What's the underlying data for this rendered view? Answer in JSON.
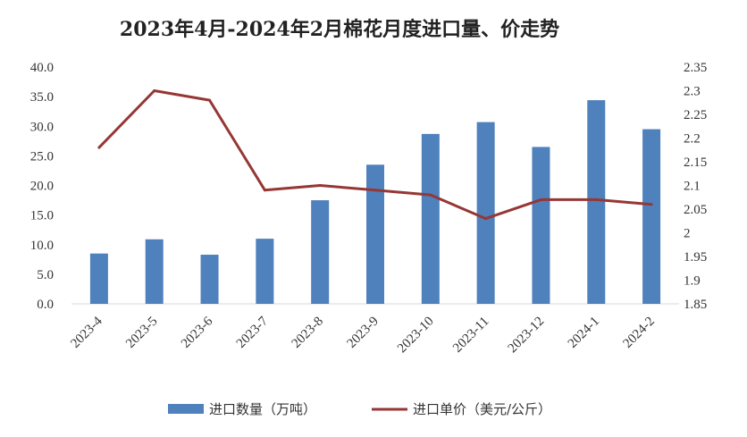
{
  "chart_data": {
    "type": "bar+line",
    "title": "2023年4月-2024年2月棉花月度进口量、价走势",
    "categories": [
      "2023-4",
      "2023-5",
      "2023-6",
      "2023-7",
      "2023-8",
      "2023-9",
      "2023-10",
      "2023-11",
      "2023-12",
      "2024-1",
      "2024-2"
    ],
    "series": [
      {
        "name": "进口数量（万吨）",
        "type": "bar",
        "axis": "left",
        "color": "#4f81bd",
        "values": [
          8.5,
          10.9,
          8.3,
          11.0,
          17.5,
          23.5,
          28.7,
          30.7,
          26.5,
          34.4,
          29.5
        ]
      },
      {
        "name": "进口单价（美元/公斤）",
        "type": "line",
        "axis": "right",
        "color": "#953735",
        "values": [
          2.18,
          2.3,
          2.28,
          2.09,
          2.1,
          2.09,
          2.08,
          2.03,
          2.07,
          2.07,
          2.06
        ]
      }
    ],
    "y_left": {
      "min": 0,
      "max": 40,
      "step": 5,
      "ticks": [
        "0.0",
        "5.0",
        "10.0",
        "15.0",
        "20.0",
        "25.0",
        "30.0",
        "35.0",
        "40.0"
      ]
    },
    "y_right": {
      "min": 1.85,
      "max": 2.35,
      "step": 0.05,
      "ticks": [
        "1.85",
        "1.9",
        "1.95",
        "2",
        "2.05",
        "2.1",
        "2.15",
        "2.2",
        "2.25",
        "2.3",
        "2.35"
      ]
    },
    "grid": false,
    "legend_position": "bottom"
  }
}
